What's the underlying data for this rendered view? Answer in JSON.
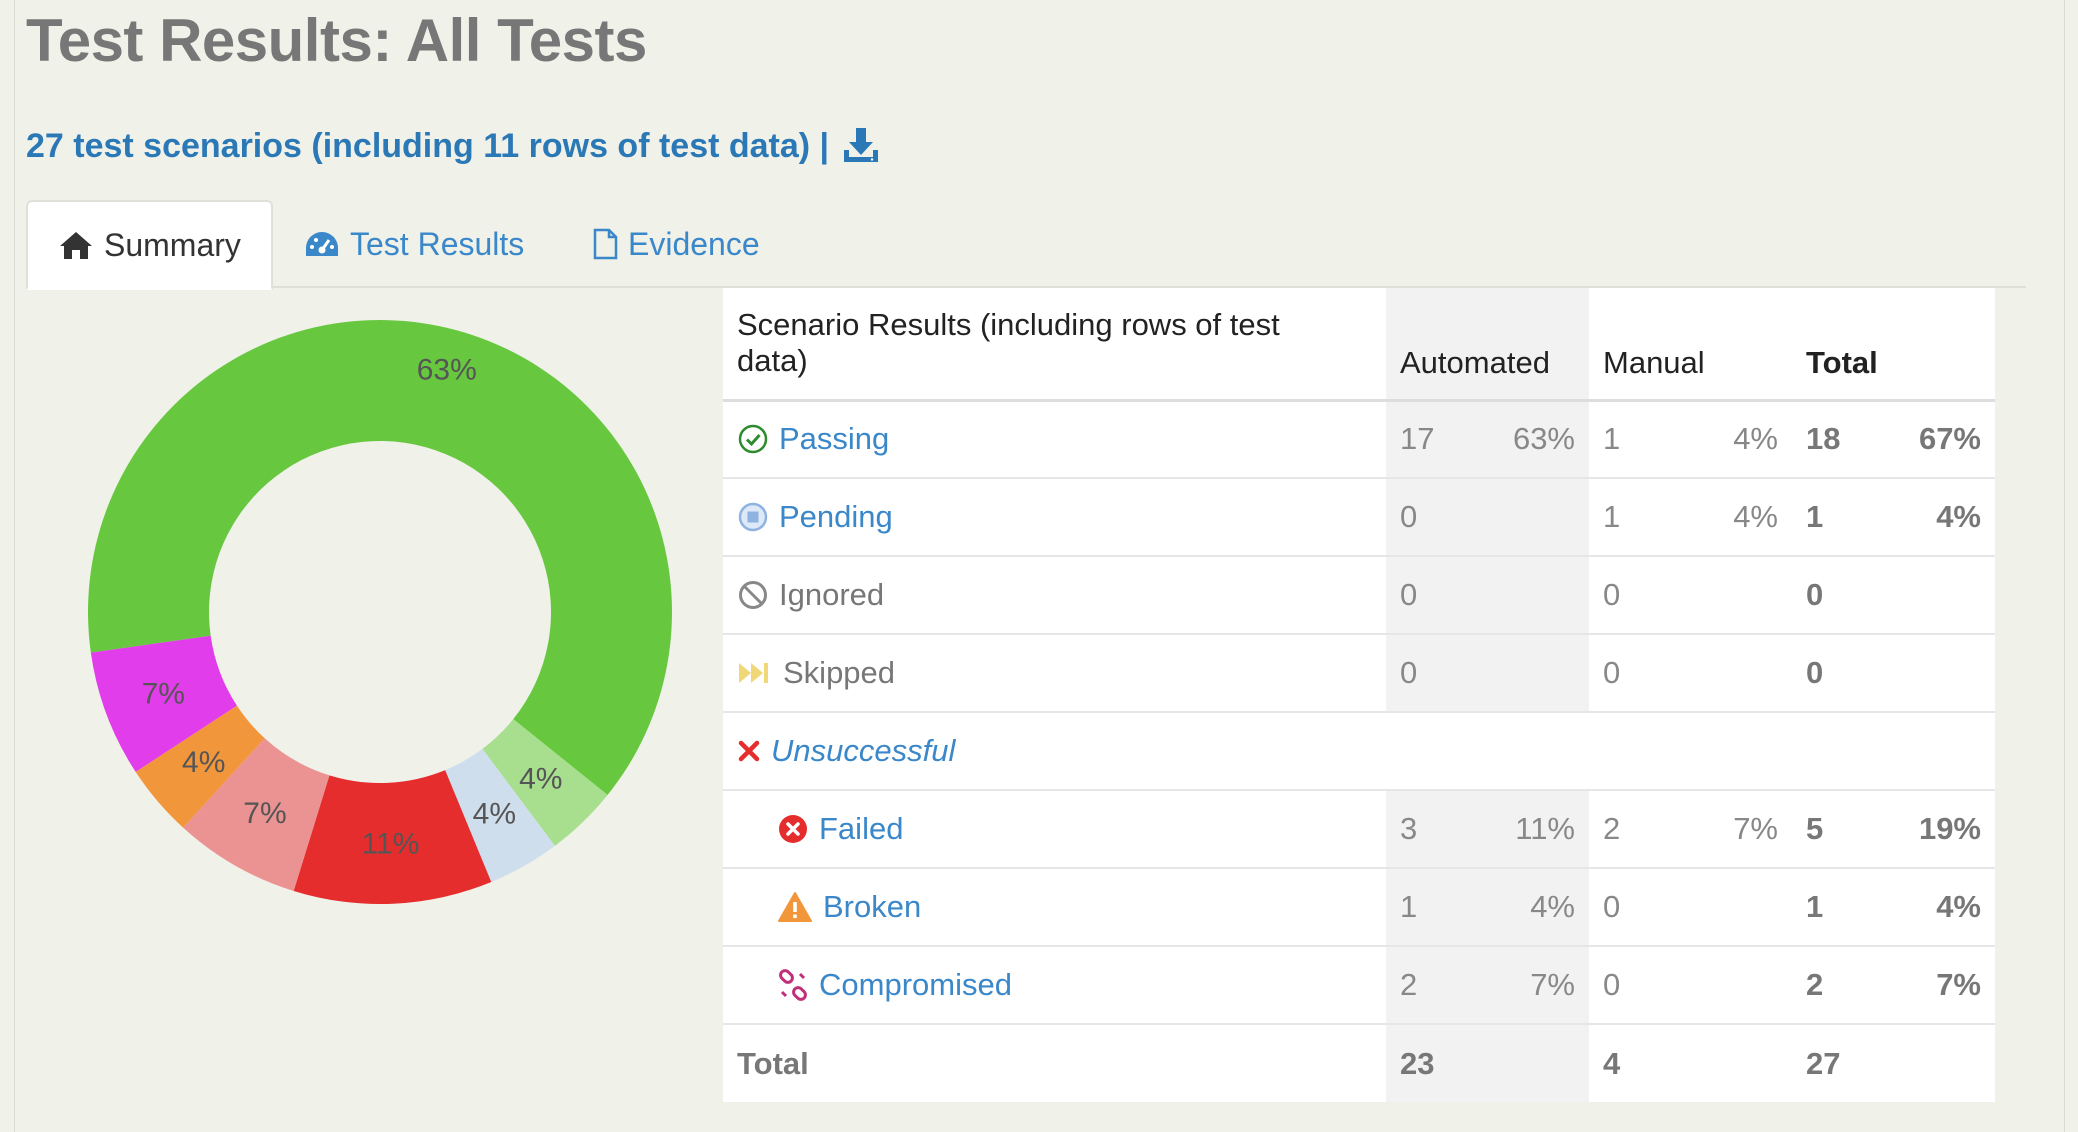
{
  "page": {
    "title": "Test Results: All Tests",
    "subtitle": "27 test scenarios (including 11 rows of test data) |",
    "download_icon": "download-icon"
  },
  "tabs": [
    {
      "label": "Summary",
      "icon": "home-icon",
      "active": true
    },
    {
      "label": "Test Results",
      "icon": "dashboard-icon",
      "active": false
    },
    {
      "label": "Evidence",
      "icon": "document-icon",
      "active": false
    }
  ],
  "chart_data": {
    "type": "pie",
    "style": "donut",
    "slices": [
      {
        "label": "63%",
        "value": 63,
        "color": "#67c840"
      },
      {
        "label": "4%",
        "value": 4,
        "color": "#a8df8e"
      },
      {
        "label": "4%",
        "value": 4,
        "color": "#cfdeec"
      },
      {
        "label": "11%",
        "value": 11,
        "color": "#e52d2d"
      },
      {
        "label": "7%",
        "value": 7,
        "color": "#eb9393"
      },
      {
        "label": "4%",
        "value": 4,
        "color": "#f2963c"
      },
      {
        "label": "7%",
        "value": 7,
        "color": "#e23dea"
      }
    ]
  },
  "table": {
    "headers": {
      "result": "Scenario Results (including rows of test data)",
      "automated": "Automated",
      "manual": "Manual",
      "total": "Total"
    },
    "rows": [
      {
        "label": "Passing",
        "icon": "check-circle-icon",
        "auto": "17",
        "auto_pct": "63%",
        "manual": "1",
        "manual_pct": "4%",
        "total": "18",
        "total_pct": "67%"
      },
      {
        "label": "Pending",
        "icon": "pending-circle-icon",
        "auto": "0",
        "auto_pct": "",
        "manual": "1",
        "manual_pct": "4%",
        "total": "1",
        "total_pct": "4%"
      },
      {
        "label": "Ignored",
        "icon": "ban-icon",
        "auto": "0",
        "auto_pct": "",
        "manual": "0",
        "manual_pct": "",
        "total": "0",
        "total_pct": ""
      },
      {
        "label": "Skipped",
        "icon": "fast-forward-icon",
        "auto": "0",
        "auto_pct": "",
        "manual": "0",
        "manual_pct": "",
        "total": "0",
        "total_pct": ""
      },
      {
        "label": "Unsuccessful",
        "icon": "x-mark-icon"
      },
      {
        "label": "Failed",
        "icon": "failed-circle-icon",
        "auto": "3",
        "auto_pct": "11%",
        "manual": "2",
        "manual_pct": "7%",
        "total": "5",
        "total_pct": "19%"
      },
      {
        "label": "Broken",
        "icon": "warning-icon",
        "auto": "1",
        "auto_pct": "4%",
        "manual": "0",
        "manual_pct": "",
        "total": "1",
        "total_pct": "4%"
      },
      {
        "label": "Compromised",
        "icon": "broken-link-icon",
        "auto": "2",
        "auto_pct": "7%",
        "manual": "0",
        "manual_pct": "",
        "total": "2",
        "total_pct": "7%"
      }
    ],
    "footer": {
      "label": "Total",
      "auto": "23",
      "manual": "4",
      "total": "27"
    }
  },
  "colors": {
    "link": "#2b78b6",
    "passing": "#2e8b2e",
    "pending": "#8fb3e0",
    "ignored": "#888888",
    "skipped": "#f0d878",
    "failed": "#e52d2d",
    "broken": "#f2963c",
    "compromised": "#c0307a"
  }
}
